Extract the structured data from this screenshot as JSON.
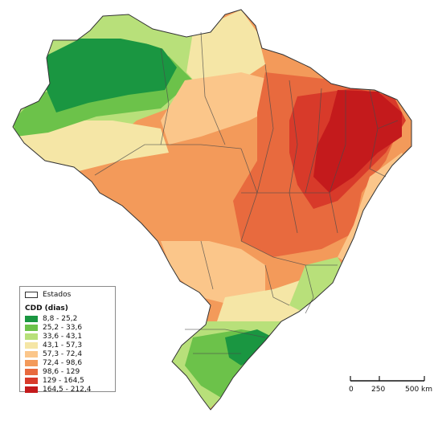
{
  "legend": {
    "boundary_label": "Estados",
    "title": "CDD (dias)",
    "classes": [
      {
        "label": "8,8 - 25,2",
        "color": "#1a9641"
      },
      {
        "label": "25,2 - 33,6",
        "color": "#6cc24a"
      },
      {
        "label": "33,6 - 43,1",
        "color": "#b8e07a"
      },
      {
        "label": "43,1 - 57,3",
        "color": "#f5e6a6"
      },
      {
        "label": "57,3 - 72,4",
        "color": "#fbc68a"
      },
      {
        "label": "72,4 - 98,6",
        "color": "#f39a5a"
      },
      {
        "label": "98,6 - 129",
        "color": "#e86a3e"
      },
      {
        "label": "129 - 164,5",
        "color": "#d83a2a"
      },
      {
        "label": "164,5 - 212,4",
        "color": "#c41a1c"
      }
    ]
  },
  "scale_bar": {
    "ticks": [
      "0",
      "250",
      "500 km"
    ]
  }
}
